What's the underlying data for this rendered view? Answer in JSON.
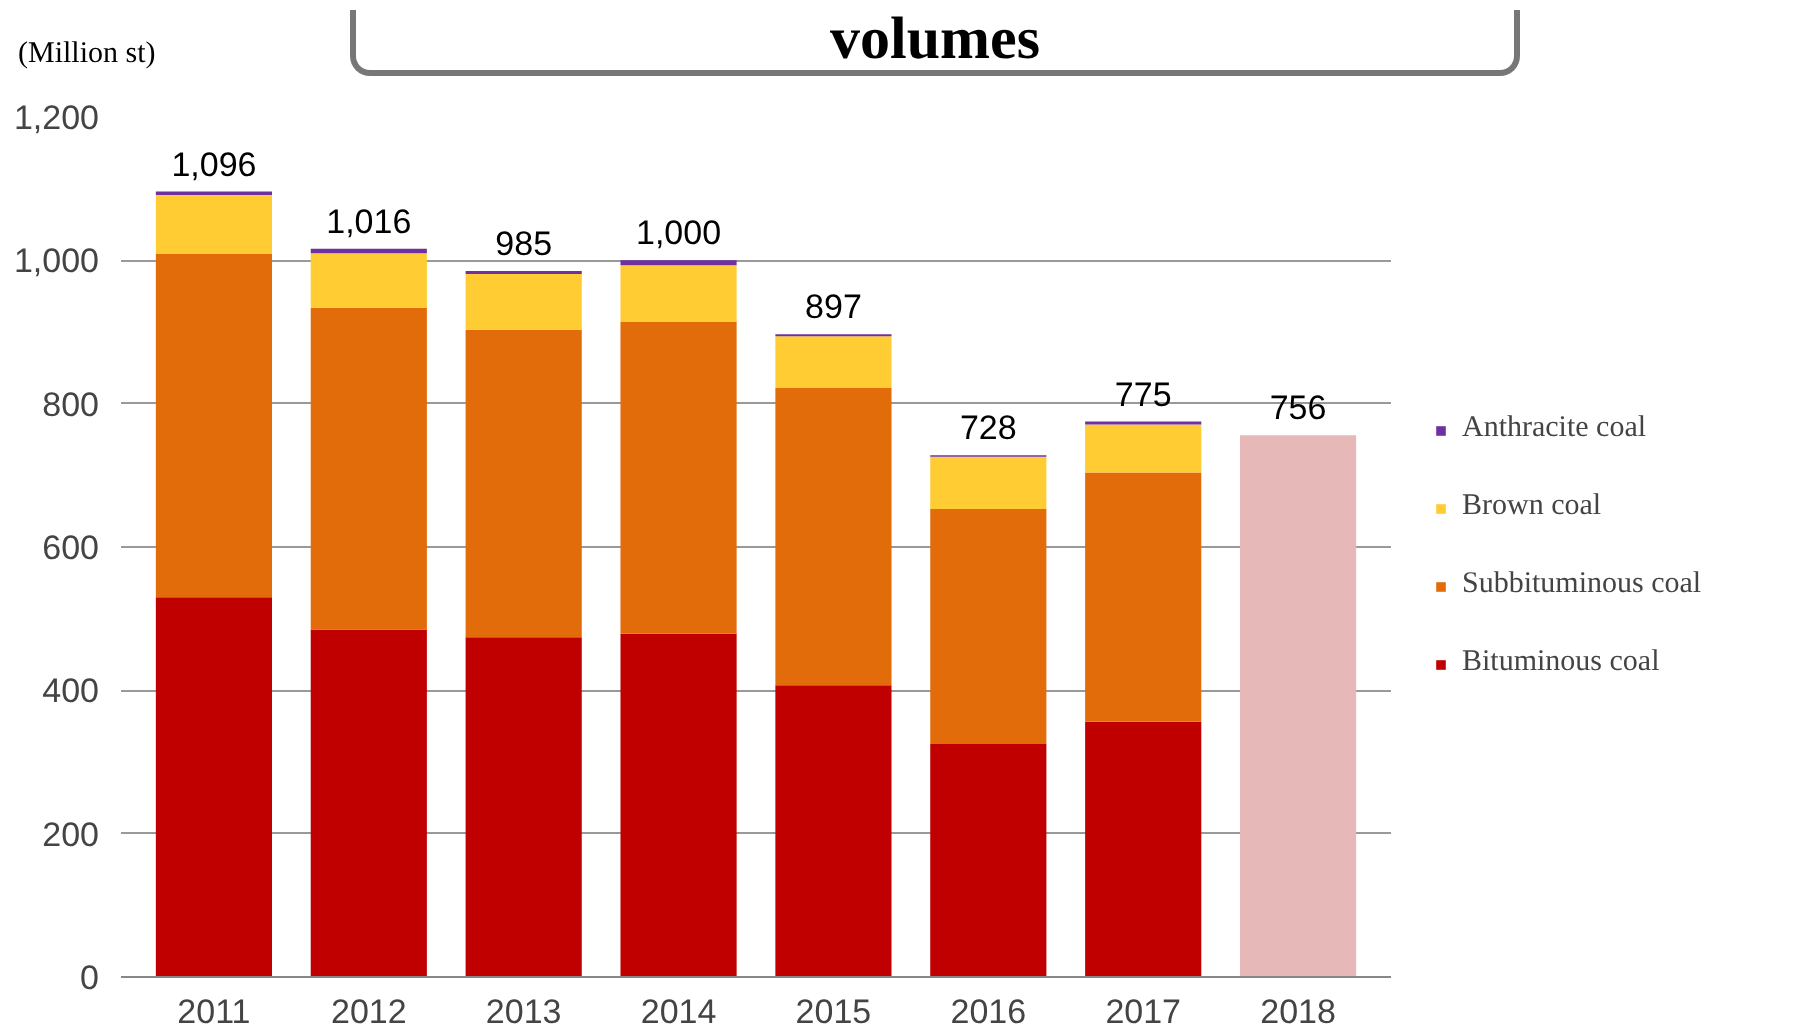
{
  "chart_data": {
    "type": "bar",
    "title": "volumes",
    "ylabel": "(Million st)",
    "stacked": true,
    "categories": [
      "2011",
      "2012",
      "2013",
      "2014",
      "2015",
      "2016",
      "2017",
      "2018"
    ],
    "series": [
      {
        "name": "Bituminous coal",
        "color": "#c00000",
        "values": [
          530,
          485,
          474,
          479,
          407,
          325,
          356,
          null
        ]
      },
      {
        "name": "Subbituminous coal",
        "color": "#e36c0a",
        "values": [
          479,
          449,
          429,
          435,
          415,
          328,
          348,
          null
        ]
      },
      {
        "name": "Brown coal",
        "color": "#ffcc33",
        "values": [
          82,
          76,
          78,
          79,
          72,
          73,
          67,
          null
        ]
      },
      {
        "name": "Anthracite coal",
        "color": "#7030a0",
        "values": [
          5,
          6,
          4,
          7,
          3,
          2,
          4,
          null
        ]
      },
      {
        "color": "#e6b8b7",
        "values": [
          null,
          null,
          null,
          null,
          null,
          null,
          null,
          756
        ]
      }
    ],
    "totals": [
      "1,096",
      "1,016",
      "985",
      "1,000",
      "897",
      "728",
      "775",
      "756"
    ],
    "ylim": [
      0,
      1200
    ],
    "yticks": [
      0,
      {
        "value": 200,
        "label": "200"
      },
      {
        "value": 400,
        "label": "400"
      },
      {
        "value": 600,
        "label": "600"
      },
      {
        "value": 800,
        "label": "800"
      },
      {
        "value": 1000,
        "label": "1,000"
      },
      {
        "value": 1200,
        "label": "1,200"
      }
    ],
    "grid": "y",
    "legend": "right"
  }
}
